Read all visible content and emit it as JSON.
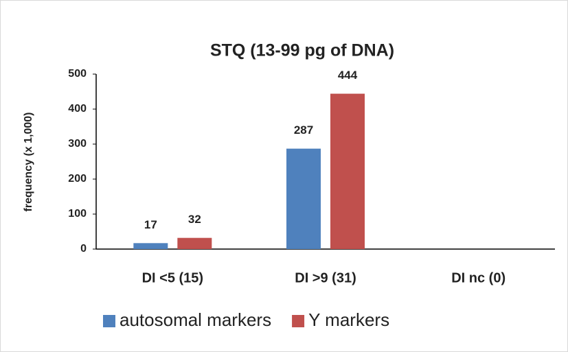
{
  "chart_data": {
    "type": "bar",
    "title": "STQ (13-99 pg of DNA)",
    "y_label": "frequency (x 1,000)",
    "categories": [
      "DI <5 (15)",
      "DI >9 (31)",
      "DI nc (0)"
    ],
    "series": [
      {
        "name": "autosomal markers",
        "color": "#4f81bd",
        "values": [
          17,
          287,
          0
        ]
      },
      {
        "name": "Y markers",
        "color": "#c0504d",
        "values": [
          32,
          444,
          0
        ]
      }
    ],
    "ylim": [
      0,
      500
    ],
    "yticks": [
      0,
      100,
      200,
      300,
      400,
      500
    ],
    "grid": false,
    "legend": "bottom"
  }
}
